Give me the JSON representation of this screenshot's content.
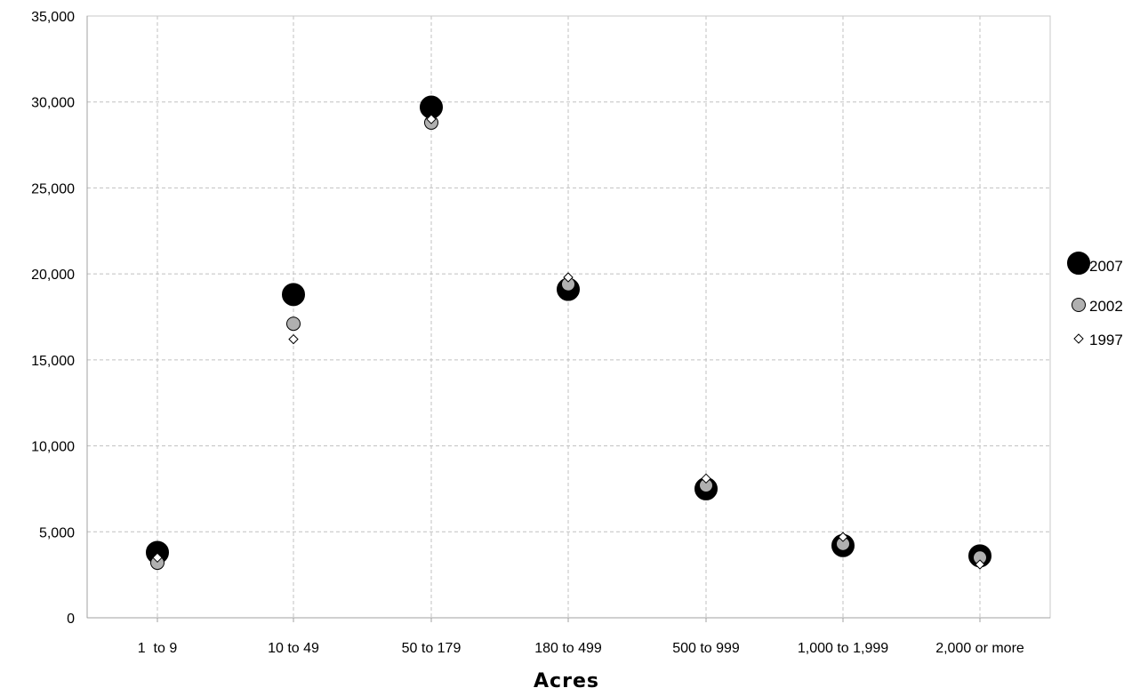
{
  "chart_data": {
    "type": "scatter",
    "title": "",
    "xlabel": "Acres",
    "ylabel": "",
    "categories": [
      "1  to 9",
      "10 to 49",
      "50 to 179",
      "180 to 499",
      "500 to 999",
      "1,000 to 1,999",
      "2,000 or more"
    ],
    "ylim": [
      0,
      35000
    ],
    "yticks": [
      0,
      5000,
      10000,
      15000,
      20000,
      25000,
      30000,
      35000
    ],
    "ytick_labels": [
      "0",
      "5,000",
      "10,000",
      "15,000",
      "20,000",
      "25,000",
      "30,000",
      "35,000"
    ],
    "grid": true,
    "legend_position": "right",
    "series": [
      {
        "name": "1997",
        "marker": "diamond",
        "color": "#ffffff",
        "stroke": "#000000",
        "values": [
          3500,
          16200,
          29000,
          19800,
          8100,
          4700,
          3100
        ]
      },
      {
        "name": "2002",
        "marker": "circle",
        "color": "#b0b0b0",
        "stroke": "#000000",
        "values": [
          3200,
          17100,
          28800,
          19400,
          7700,
          4300,
          3500
        ]
      },
      {
        "name": "2007",
        "marker": "circle-large",
        "color": "#000000",
        "stroke": "#000000",
        "values": [
          3800,
          18800,
          29700,
          19100,
          7500,
          4200,
          3600
        ]
      }
    ],
    "legend_order": [
      "2007",
      "2002",
      "1997"
    ]
  }
}
